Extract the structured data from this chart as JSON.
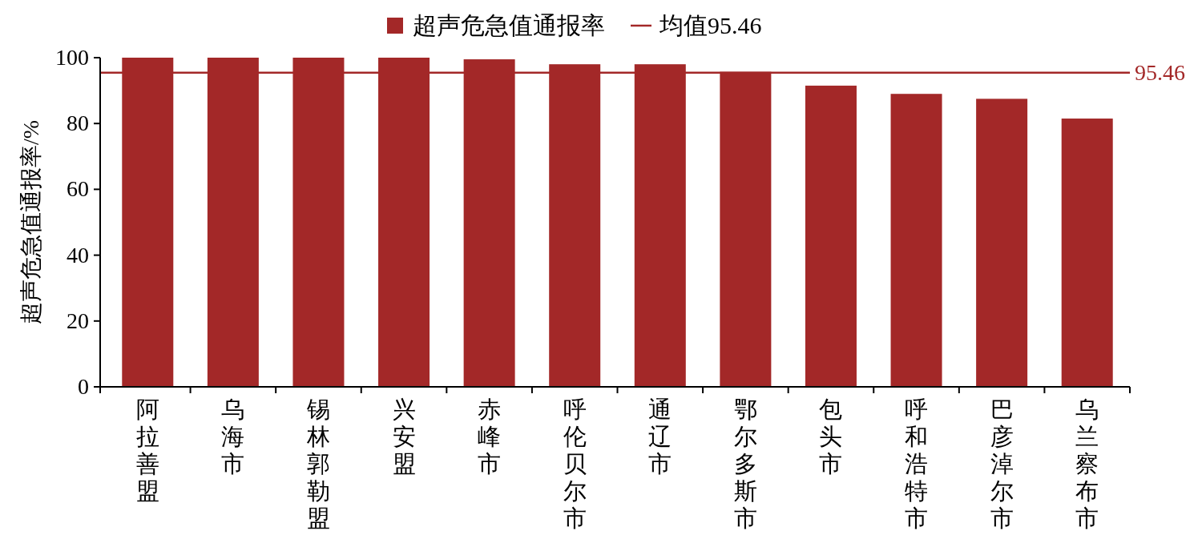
{
  "chart_data": {
    "type": "bar",
    "ylabel": "超声危急值通报率/%",
    "categories": [
      "阿拉善盟",
      "乌海市",
      "锡林郭勒盟",
      "兴安盟",
      "赤峰市",
      "呼伦贝尔市",
      "通辽市",
      "鄂尔多斯市",
      "包头市",
      "呼和浩特市",
      "巴彦淖尔市",
      "乌兰察布市"
    ],
    "series": [
      {
        "name": "超声危急值通报率",
        "color": "#a32828",
        "values": [
          100,
          100,
          100,
          100,
          99.5,
          98,
          98,
          95.7,
          91.5,
          89,
          87.5,
          81.5
        ]
      }
    ],
    "ylim": [
      0,
      100
    ],
    "yticks": [
      0,
      20,
      40,
      60,
      80,
      100
    ],
    "ref_lines": [
      {
        "axis": "y",
        "value": 95.46,
        "label": "95.46",
        "color": "#a32828",
        "line_style": "solid"
      }
    ],
    "annotations": [
      "均值95.46"
    ],
    "legend": "top"
  }
}
